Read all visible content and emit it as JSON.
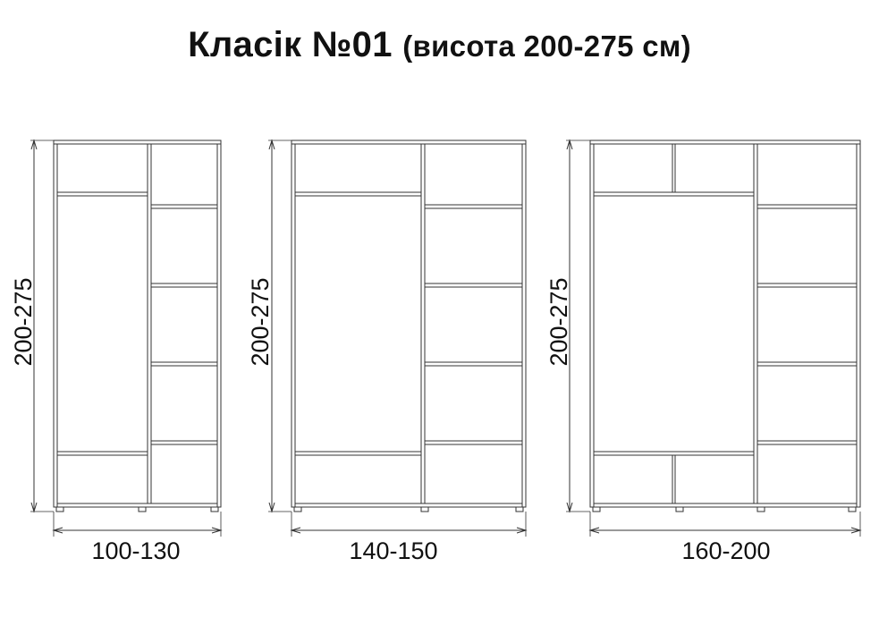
{
  "title": {
    "main": "Класік №01",
    "sub": "(висота 200-275 см)"
  },
  "wardrobes": [
    {
      "height_label": "200-275",
      "width_label": "100-130"
    },
    {
      "height_label": "200-275",
      "width_label": "140-150"
    },
    {
      "height_label": "200-275",
      "width_label": "160-200"
    }
  ],
  "colors": {
    "line": "#333333",
    "text": "#111111"
  }
}
